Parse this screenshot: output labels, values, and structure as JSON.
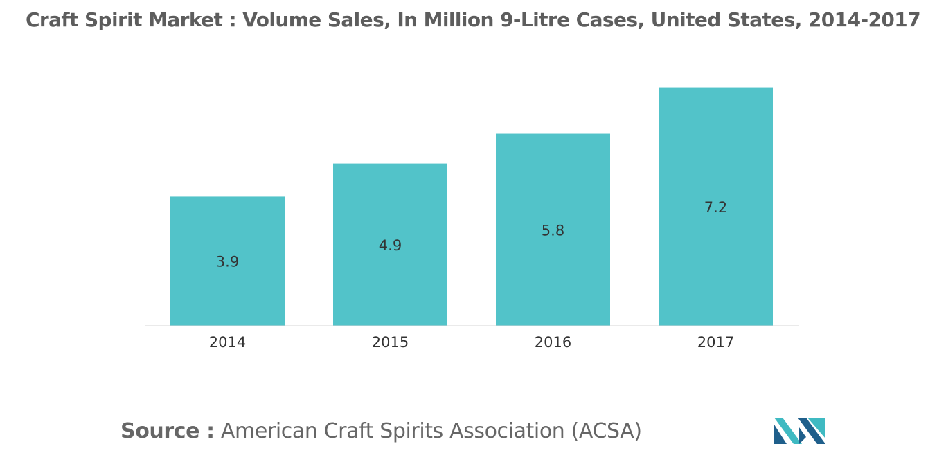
{
  "chart_data": {
    "type": "bar",
    "title": "Craft Spirit Market : Volume Sales, In Million 9-Litre Cases, United States, 2014-2017",
    "categories": [
      "2014",
      "2015",
      "2016",
      "2017"
    ],
    "series": [
      {
        "values": [
          3.9,
          4.9,
          5.8,
          7.2
        ]
      }
    ],
    "data_labels": [
      "3.9",
      "4.9",
      "5.8",
      "7.2"
    ],
    "xlabel": "",
    "ylabel": "",
    "ylim": [
      0,
      7.4
    ],
    "grid": false,
    "legend": "none",
    "bar_color": "#52c3c9"
  },
  "source": {
    "label": "Source :",
    "text": "American Craft Spirits Association (ACSA)"
  },
  "colors": {
    "title": "#5d5d5d",
    "bar": "#52c3c9",
    "axis": "#d6d6d6",
    "text": "#333333",
    "logo_dark": "#1f5f8b",
    "logo_light": "#3fbac2"
  }
}
